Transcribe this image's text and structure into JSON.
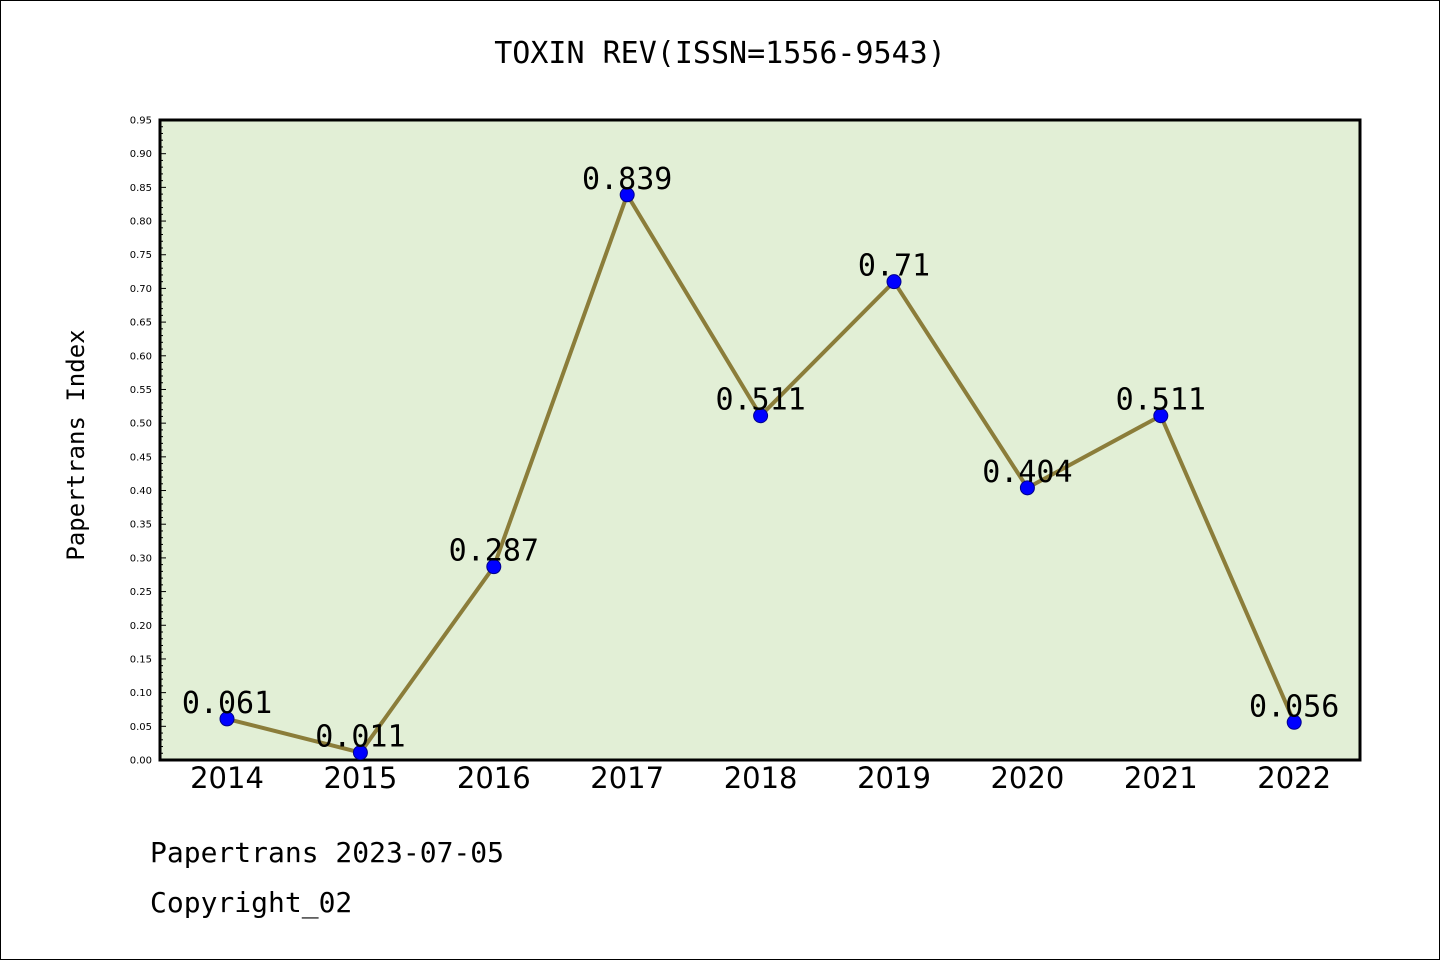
{
  "title": "TOXIN REV(ISSN=1556-9543)",
  "footer": {
    "line1": "Papertrans 2023-07-05",
    "line2": "Copyright_02"
  },
  "colors": {
    "plot_bg": "#e2efd6",
    "line": "#8b7d3a",
    "marker": "#0000ff"
  },
  "chart_data": {
    "type": "line",
    "title": "TOXIN REV(ISSN=1556-9543)",
    "xlabel": "",
    "ylabel": "Papertrans Index",
    "categories": [
      "2014",
      "2015",
      "2016",
      "2017",
      "2018",
      "2019",
      "2020",
      "2021",
      "2022"
    ],
    "series": [
      {
        "values": [
          0.061,
          0.011,
          0.287,
          0.839,
          0.511,
          0.71,
          0.404,
          0.511,
          0.056
        ],
        "labels": [
          "0.061",
          "0.011",
          "0.287",
          "0.839",
          "0.511",
          "0.71",
          "0.404",
          "0.511",
          "0.056"
        ]
      }
    ],
    "ylim": [
      0,
      0.95
    ],
    "yticks": [
      "0.00",
      "0.05",
      "0.10",
      "0.15",
      "0.20",
      "0.25",
      "0.30",
      "0.35",
      "0.40",
      "0.45",
      "0.50",
      "0.55",
      "0.60",
      "0.65",
      "0.70",
      "0.75",
      "0.80",
      "0.85",
      "0.90",
      "0.95"
    ],
    "grid": false,
    "legend": "none"
  }
}
